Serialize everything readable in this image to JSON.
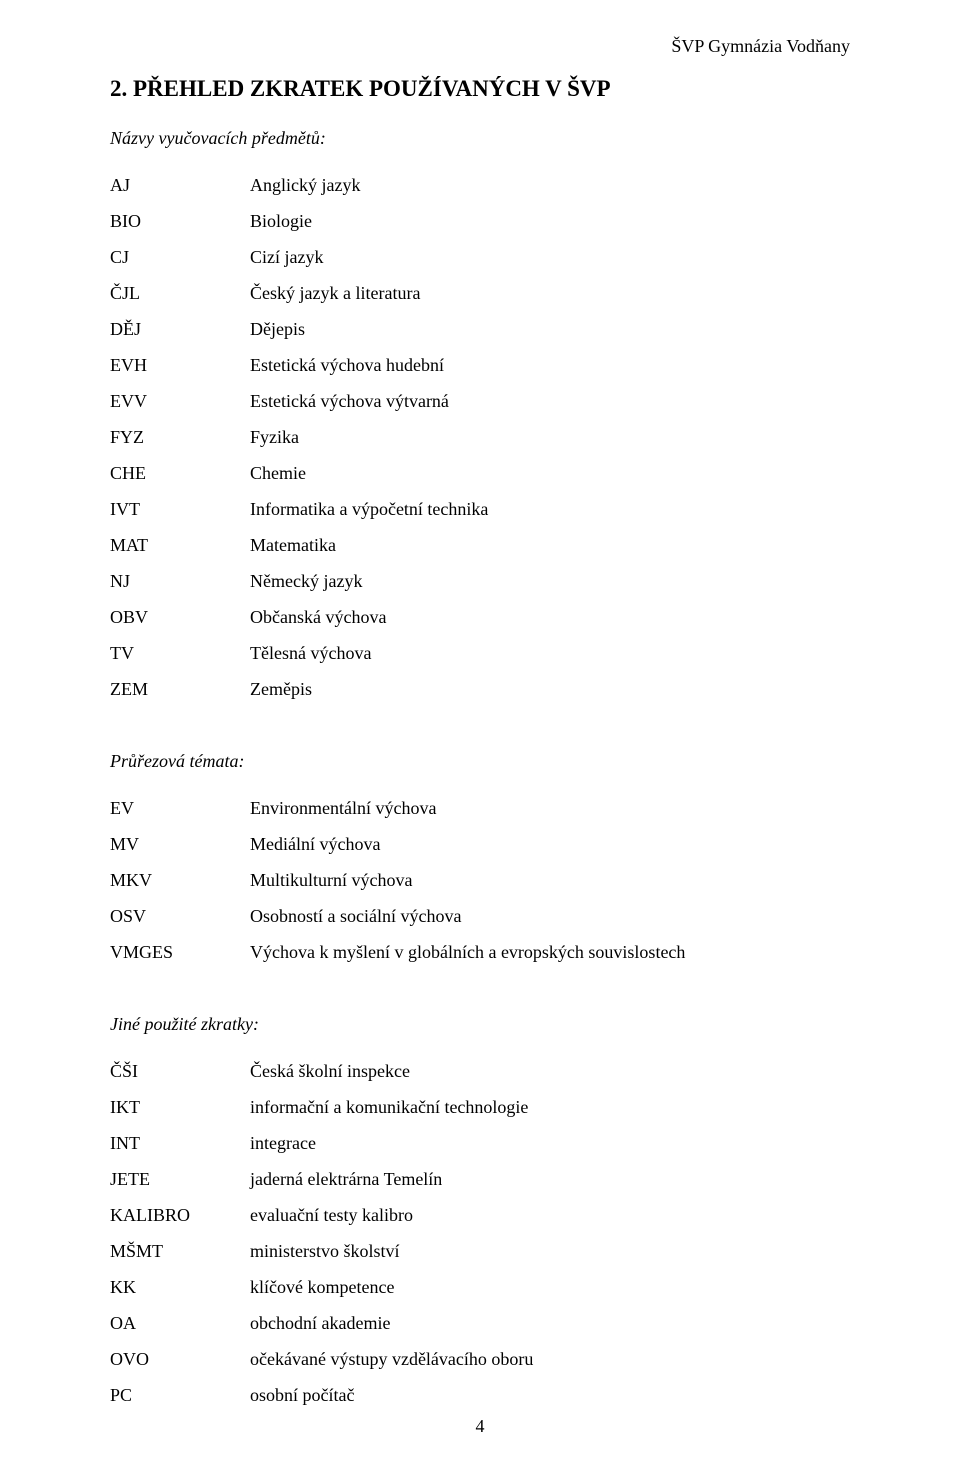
{
  "header": {
    "right": "ŠVP Gymnázia Vodňany"
  },
  "title": "2. PŘEHLED ZKRATEK POUŽÍVANÝCH V ŠVP",
  "sections": [
    {
      "label": "Názvy vyučovacích předmětů:",
      "rows": [
        {
          "key": "AJ",
          "val": "Anglický jazyk"
        },
        {
          "key": "BIO",
          "val": "Biologie"
        },
        {
          "key": "CJ",
          "val": "Cizí jazyk"
        },
        {
          "key": "ČJL",
          "val": "Český jazyk a literatura"
        },
        {
          "key": "DĚJ",
          "val": "Dějepis"
        },
        {
          "key": "EVH",
          "val": "Estetická výchova hudební"
        },
        {
          "key": "EVV",
          "val": "Estetická výchova výtvarná"
        },
        {
          "key": "FYZ",
          "val": "Fyzika"
        },
        {
          "key": "CHE",
          "val": "Chemie"
        },
        {
          "key": "IVT",
          "val": "Informatika a výpočetní technika"
        },
        {
          "key": "MAT",
          "val": "Matematika"
        },
        {
          "key": "NJ",
          "val": "Německý jazyk"
        },
        {
          "key": "OBV",
          "val": "Občanská výchova"
        },
        {
          "key": "TV",
          "val": "Tělesná výchova"
        },
        {
          "key": "ZEM",
          "val": "Zeměpis"
        }
      ]
    },
    {
      "label": "Průřezová témata:",
      "rows": [
        {
          "key": "EV",
          "val": "Environmentální výchova"
        },
        {
          "key": "MV",
          "val": "Mediální výchova"
        },
        {
          "key": "MKV",
          "val": "Multikulturní výchova"
        },
        {
          "key": "OSV",
          "val": "Osobností a sociální výchova"
        },
        {
          "key": "VMGES",
          "val": "Výchova k myšlení v globálních a evropských souvislostech"
        }
      ]
    },
    {
      "label": "Jiné použité zkratky:",
      "rows": [
        {
          "key": "ČŠI",
          "val": "Česká školní inspekce"
        },
        {
          "key": "IKT",
          "val": "informační a komunikační technologie"
        },
        {
          "key": "INT",
          "val": "integrace"
        },
        {
          "key": "JETE",
          "val": "jaderná elektrárna Temelín"
        },
        {
          "key": "KALIBRO",
          "val": "evaluační testy kalibro"
        },
        {
          "key": "MŠMT",
          "val": "ministerstvo školství"
        },
        {
          "key": "KK",
          "val": "klíčové kompetence"
        },
        {
          "key": "OA",
          "val": "obchodní akademie"
        },
        {
          "key": "OVO",
          "val": "očekávané výstupy vzdělávacího oboru"
        },
        {
          "key": "PC",
          "val": "osobní počítač"
        }
      ]
    }
  ],
  "page_number": "4"
}
